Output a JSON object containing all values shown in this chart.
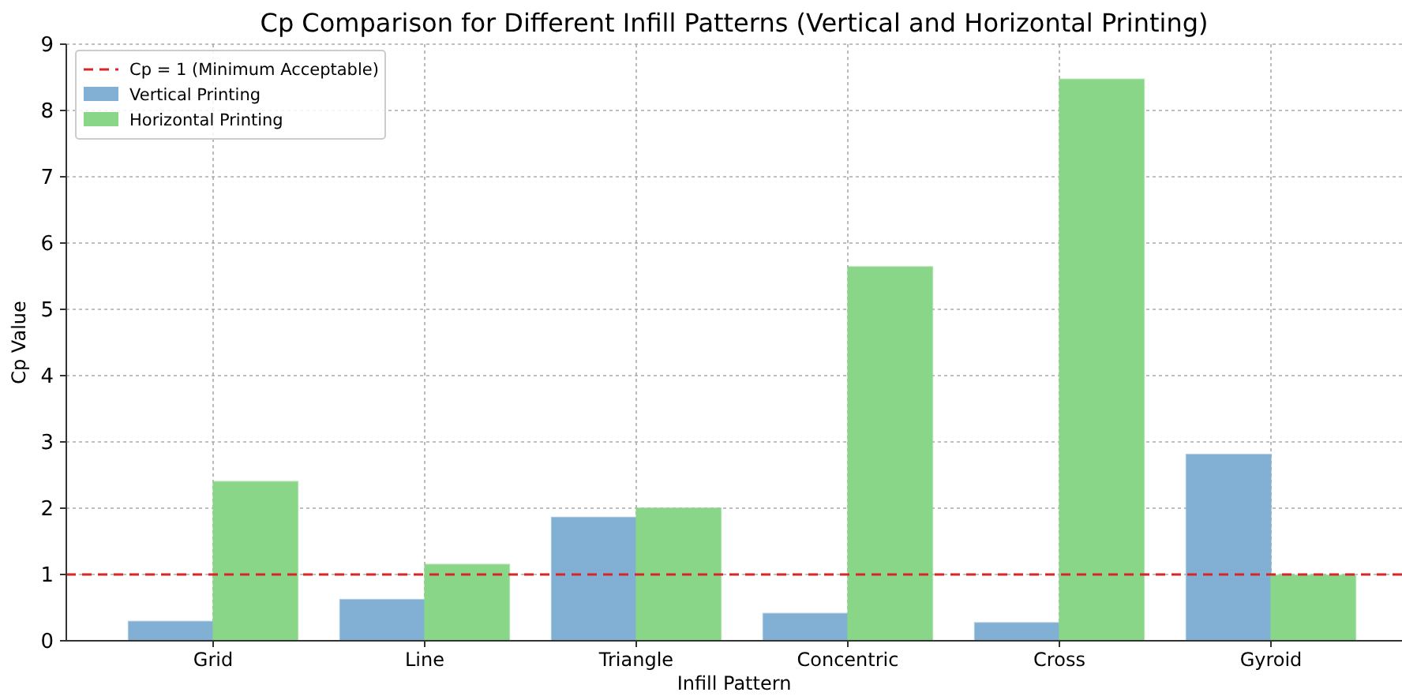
{
  "chart_data": {
    "type": "bar",
    "title": "Cp Comparison for Different Infill Patterns (Vertical and Horizontal Printing)",
    "xlabel": "Infill Pattern",
    "ylabel": "Cp Value",
    "categories": [
      "Grid",
      "Line",
      "Triangle",
      "Concentric",
      "Cross",
      "Gyroid"
    ],
    "series": [
      {
        "name": "Vertical Printing",
        "color": "#82b0d4",
        "values": [
          0.29,
          0.62,
          1.86,
          0.41,
          0.27,
          2.81
        ]
      },
      {
        "name": "Horizontal Printing",
        "color": "#8ad688",
        "values": [
          2.4,
          1.15,
          2.0,
          5.64,
          8.47,
          0.99
        ]
      }
    ],
    "ylim": [
      0,
      9
    ],
    "yticks": [
      0,
      1,
      2,
      3,
      4,
      5,
      6,
      7,
      8,
      9
    ],
    "grid": true,
    "legend": "top left",
    "ref_lines": [
      {
        "axis": "y",
        "value": 1,
        "label": "Cp = 1 (Minimum Acceptable)",
        "color": "#d62728",
        "line_style": "dashed"
      }
    ]
  }
}
